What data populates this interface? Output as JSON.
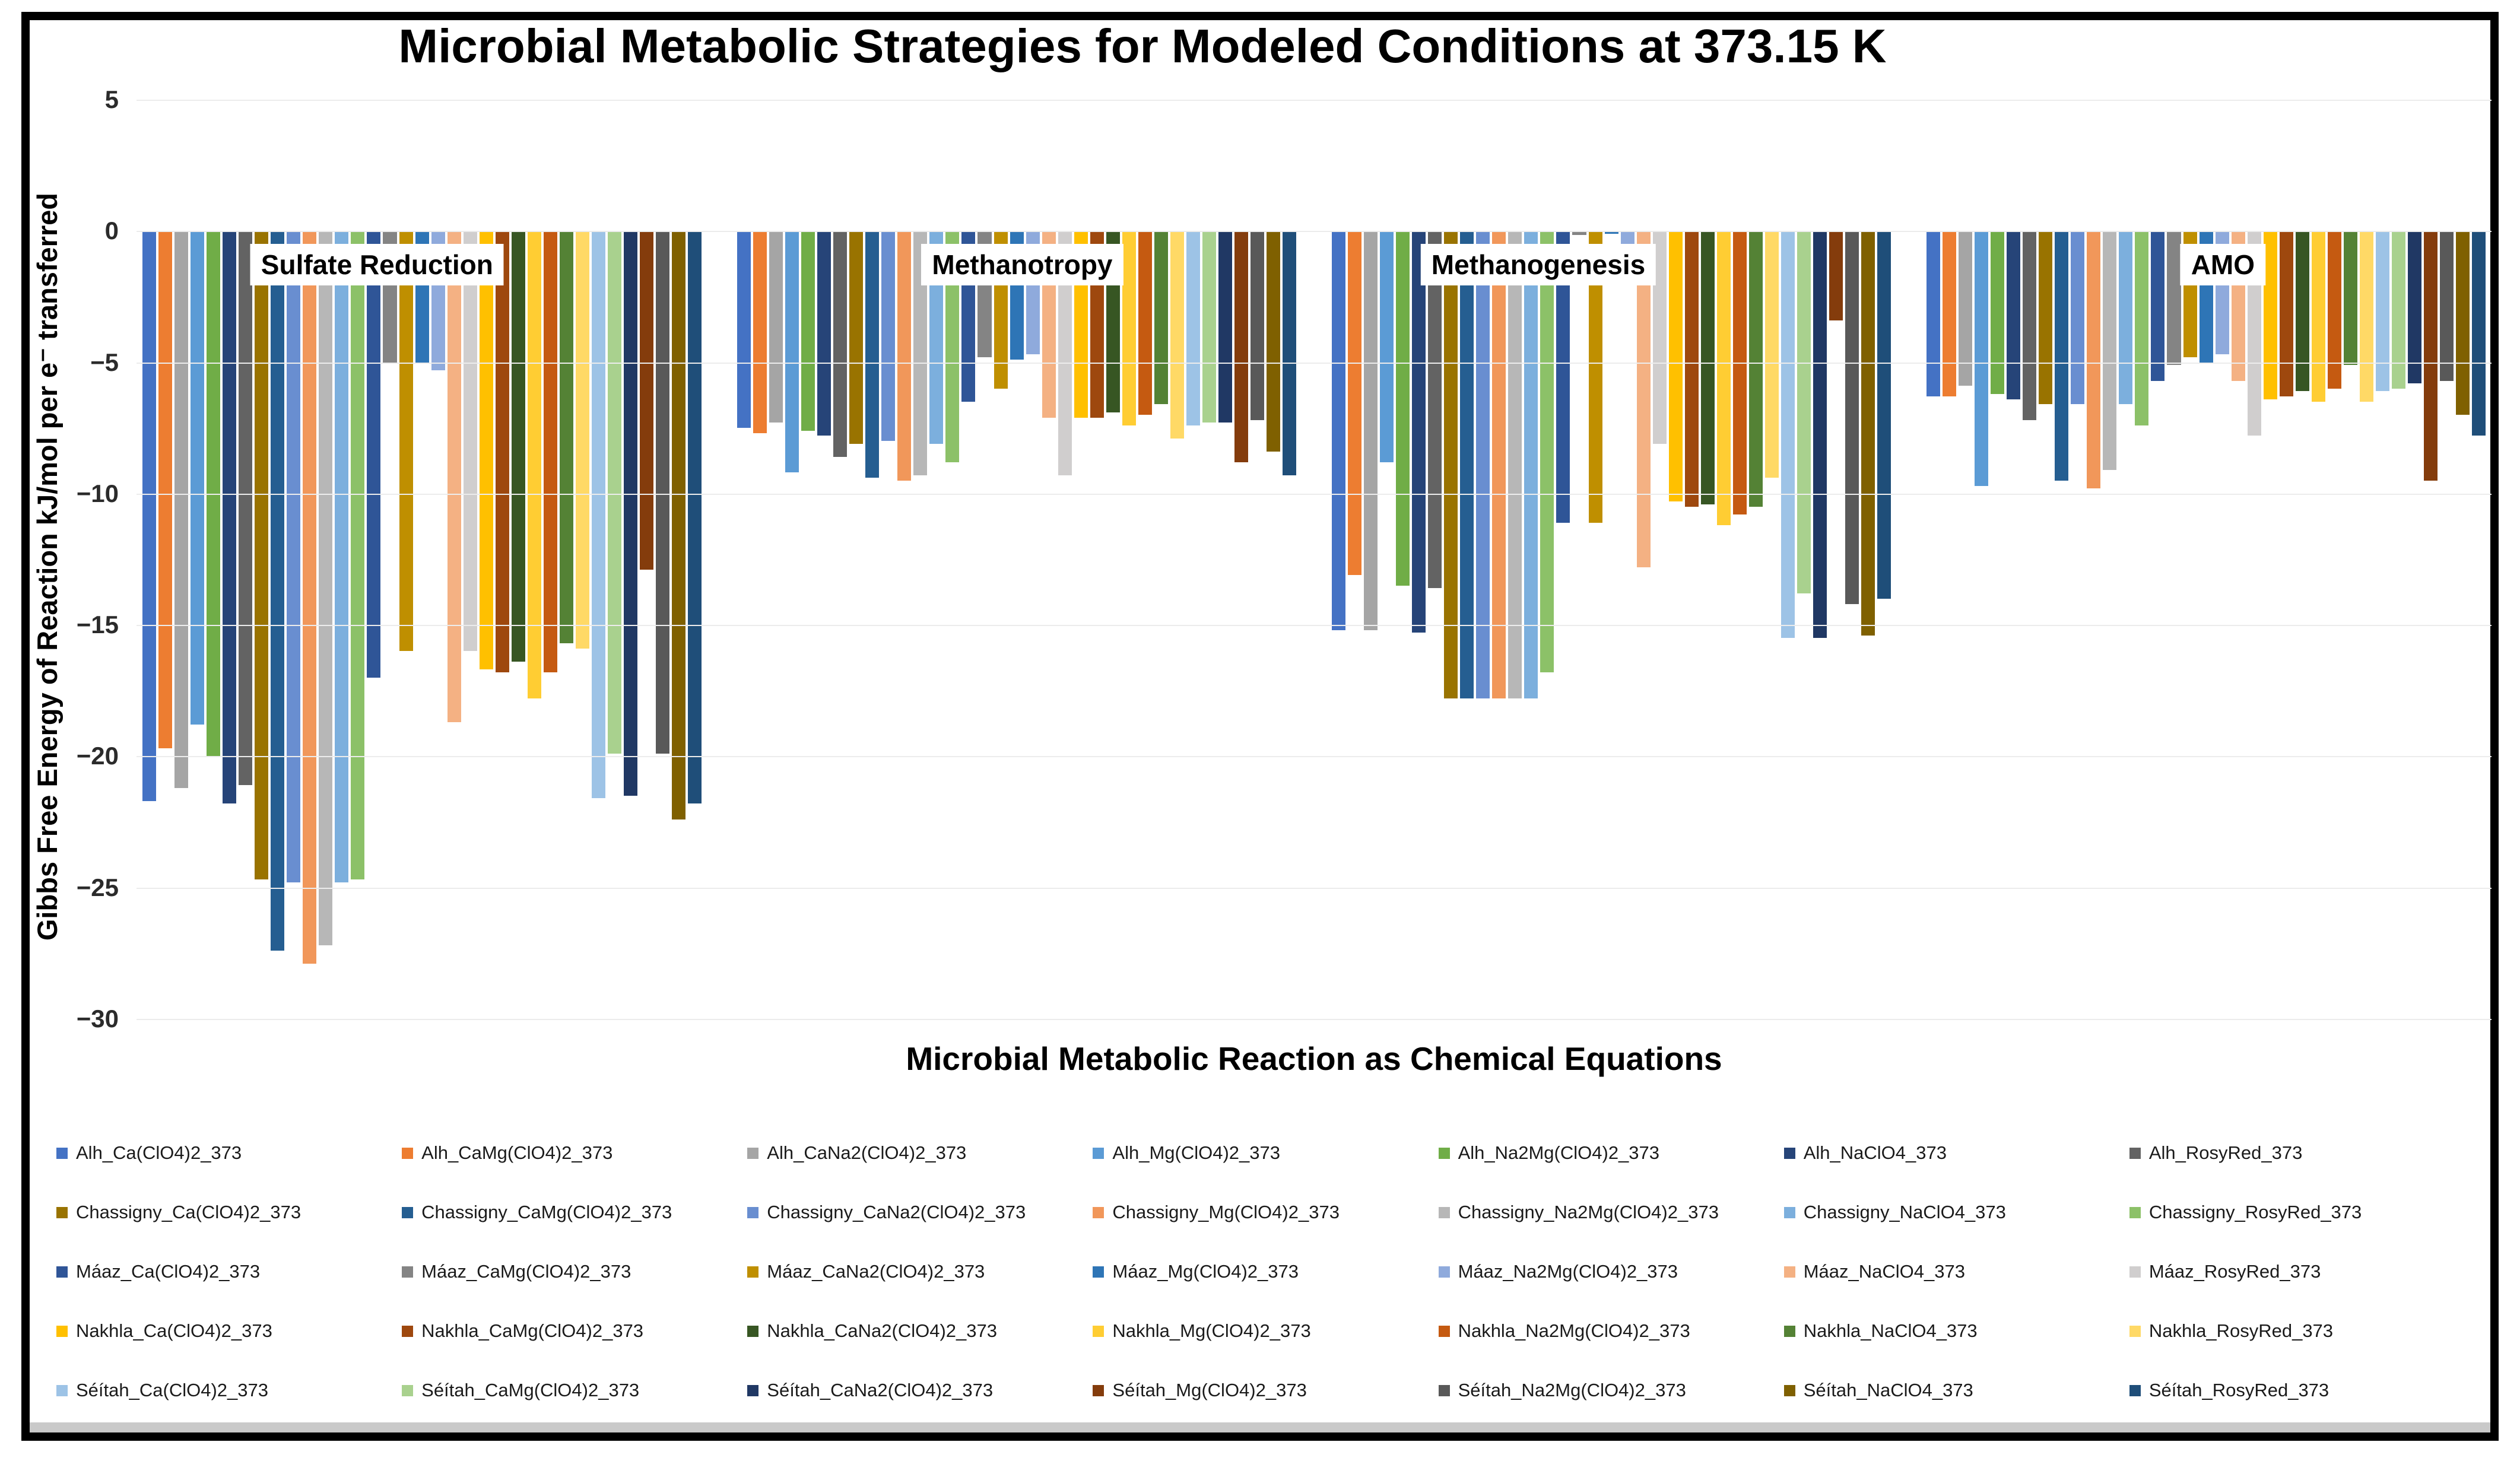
{
  "chart_data": {
    "type": "bar",
    "title": "Microbial Metabolic Strategies for Modeled Conditions at 373.15 K",
    "xlabel": "Microbial Metabolic Reaction as Chemical Equations",
    "ylabel": "Gibbs Free Energy of Reaction kJ/mol per e⁻ transferred",
    "ylim": [
      -30,
      5
    ],
    "yticks": [
      5,
      0,
      -5,
      -10,
      -15,
      -20,
      -25,
      -30
    ],
    "grid": true,
    "legend_position": "bottom",
    "groups": [
      "Sulfate Reduction",
      "Methanotropy",
      "Methanogenesis",
      "AMO"
    ],
    "group_value_order": [
      "Sulfate Reduction",
      "Methanotropy",
      "Methanogenesis",
      "AMO"
    ],
    "series": [
      {
        "name": "Alh_Ca(ClO4)2_373",
        "color": "#4472C4",
        "values": [
          -21.7,
          -7.5,
          -15.2,
          -6.3
        ]
      },
      {
        "name": "Alh_CaMg(ClO4)2_373",
        "color": "#ED7D31",
        "values": [
          -19.7,
          -7.7,
          -13.1,
          -6.3
        ]
      },
      {
        "name": "Alh_CaNa2(ClO4)2_373",
        "color": "#A5A5A5",
        "values": [
          -21.2,
          -7.3,
          -15.2,
          -5.9
        ]
      },
      {
        "name": "Alh_Mg(ClO4)2_373",
        "color": "#5B9BD5",
        "values": [
          -18.8,
          -9.2,
          -8.8,
          -9.7
        ]
      },
      {
        "name": "Alh_Na2Mg(ClO4)2_373",
        "color": "#70AD47",
        "values": [
          -20.0,
          -7.6,
          -13.5,
          -6.2
        ]
      },
      {
        "name": "Alh_NaClO4_373",
        "color": "#264478",
        "values": [
          -21.8,
          -7.8,
          -15.3,
          -6.4
        ]
      },
      {
        "name": "Alh_RosyRed_373",
        "color": "#636363",
        "values": [
          -21.1,
          -8.6,
          -13.6,
          -7.2
        ]
      },
      {
        "name": "Chassigny_Ca(ClO4)2_373",
        "color": "#997300",
        "values": [
          -24.7,
          -8.1,
          -17.8,
          -6.6
        ]
      },
      {
        "name": "Chassigny_CaMg(ClO4)2_373",
        "color": "#255E91",
        "values": [
          -27.4,
          -9.4,
          -17.8,
          -9.5
        ]
      },
      {
        "name": "Chassigny_CaNa2(ClO4)2_373",
        "color": "#698ED0",
        "values": [
          -24.8,
          -8.0,
          -17.8,
          -6.6
        ]
      },
      {
        "name": "Chassigny_Mg(ClO4)2_373",
        "color": "#F1975A",
        "values": [
          -27.9,
          -9.5,
          -17.8,
          -9.8
        ]
      },
      {
        "name": "Chassigny_Na2Mg(ClO4)2_373",
        "color": "#B7B7B7",
        "values": [
          -27.2,
          -9.3,
          -17.8,
          -9.1
        ]
      },
      {
        "name": "Chassigny_NaClO4_373",
        "color": "#7CAFDD",
        "values": [
          -24.8,
          -8.1,
          -17.8,
          -6.6
        ]
      },
      {
        "name": "Chassigny_RosyRed_373",
        "color": "#8CC168",
        "values": [
          -24.7,
          -8.8,
          -16.8,
          -7.4
        ]
      },
      {
        "name": "Máaz_Ca(ClO4)2_373",
        "color": "#2F5597",
        "values": [
          -17.0,
          -6.5,
          -11.1,
          -5.7
        ]
      },
      {
        "name": "Máaz_CaMg(ClO4)2_373",
        "color": "#848484",
        "values": [
          -5.0,
          -4.8,
          -0.15,
          -5.1
        ]
      },
      {
        "name": "Máaz_CaNa2(ClO4)2_373",
        "color": "#BF8F00",
        "values": [
          -16.0,
          -6.0,
          -11.1,
          -4.8
        ]
      },
      {
        "name": "Máaz_Mg(ClO4)2_373",
        "color": "#2E75B6",
        "values": [
          -5.0,
          -4.9,
          -0.1,
          -5.0
        ]
      },
      {
        "name": "Máaz_Na2Mg(ClO4)2_373",
        "color": "#8FAADC",
        "values": [
          -5.3,
          -4.7,
          -0.6,
          -4.7
        ]
      },
      {
        "name": "Máaz_NaClO4_373",
        "color": "#F4B183",
        "values": [
          -18.7,
          -7.1,
          -12.8,
          -5.7
        ]
      },
      {
        "name": "Máaz_RosyRed_373",
        "color": "#D0CECE",
        "values": [
          -16.0,
          -9.3,
          -8.1,
          -7.8
        ]
      },
      {
        "name": "Nakhla_Ca(ClO4)2_373",
        "color": "#FFC000",
        "values": [
          -16.7,
          -7.1,
          -10.3,
          -6.4
        ]
      },
      {
        "name": "Nakhla_CaMg(ClO4)2_373",
        "color": "#9E480E",
        "values": [
          -16.8,
          -7.1,
          -10.5,
          -6.3
        ]
      },
      {
        "name": "Nakhla_CaNa2(ClO4)2_373",
        "color": "#375623",
        "values": [
          -16.4,
          -6.9,
          -10.4,
          -6.1
        ]
      },
      {
        "name": "Nakhla_Mg(ClO4)2_373",
        "color": "#FFCD33",
        "values": [
          -17.8,
          -7.4,
          -11.2,
          -6.5
        ]
      },
      {
        "name": "Nakhla_Na2Mg(ClO4)2_373",
        "color": "#C55A11",
        "values": [
          -16.8,
          -7.0,
          -10.8,
          -6.0
        ]
      },
      {
        "name": "Nakhla_NaClO4_373",
        "color": "#548235",
        "values": [
          -15.7,
          -6.6,
          -10.5,
          -5.1
        ]
      },
      {
        "name": "Nakhla_RosyRed_373",
        "color": "#FFD966",
        "values": [
          -15.9,
          -7.9,
          -9.4,
          -6.5
        ]
      },
      {
        "name": "Séítah_Ca(ClO4)2_373",
        "color": "#9DC3E6",
        "values": [
          -21.6,
          -7.4,
          -15.5,
          -6.1
        ]
      },
      {
        "name": "Séítah_CaMg(ClO4)2_373",
        "color": "#A9D18E",
        "values": [
          -19.9,
          -7.3,
          -13.8,
          -6.0
        ]
      },
      {
        "name": "Séítah_CaNa2(ClO4)2_373",
        "color": "#203864",
        "values": [
          -21.5,
          -7.3,
          -15.5,
          -5.8
        ]
      },
      {
        "name": "Séítah_Mg(ClO4)2_373",
        "color": "#843C0C",
        "values": [
          -12.9,
          -8.8,
          -3.4,
          -9.5
        ]
      },
      {
        "name": "Séítah_Na2Mg(ClO4)2_373",
        "color": "#595959",
        "values": [
          -19.9,
          -7.2,
          -14.2,
          -5.7
        ]
      },
      {
        "name": "Séítah_NaClO4_373",
        "color": "#7F6000",
        "values": [
          -22.4,
          -8.4,
          -15.4,
          -7.0
        ]
      },
      {
        "name": "Séítah_RosyRed_373",
        "color": "#1F4E79",
        "values": [
          -21.8,
          -9.3,
          -14.0,
          -7.8
        ]
      }
    ]
  }
}
